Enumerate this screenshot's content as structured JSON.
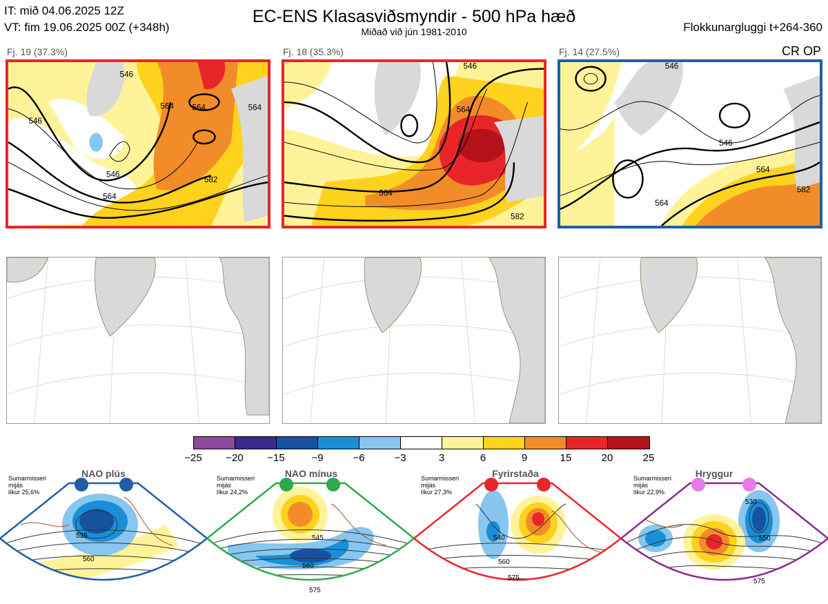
{
  "header": {
    "it_line": "IT: mið 04.06.2025 12Z",
    "vt_line": "VT: fim 19.06.2025 00Z  (+348h)",
    "title": "EC-ENS Klasasviðsmyndir - 500 hPa hæð",
    "subtitle": "Miðað við jún 1981-2010",
    "window": "Flokkunargluggi t+264-360",
    "regime_tag": "CR OP"
  },
  "clusters": [
    {
      "label": "Fj. 19 (37.3%)",
      "frame_color": "#e8262a",
      "contours": [
        "546",
        "564",
        "564",
        "564",
        "546",
        "546",
        "564",
        "582"
      ]
    },
    {
      "label": "Fj. 18 (35.3%)",
      "frame_color": "#e8262a",
      "contours": [
        "546",
        "564",
        "564",
        "582"
      ]
    },
    {
      "label": "Fj. 14 (27.5%)",
      "frame_color": "#1f5fa6",
      "contours": [
        "546",
        "546",
        "564",
        "564",
        "582"
      ]
    }
  ],
  "colorbar": {
    "colors": [
      "#8a4a9e",
      "#3b2a8c",
      "#1752a0",
      "#1a8fd8",
      "#87c6ef",
      "#ffffff",
      "#fff39a",
      "#ffd21e",
      "#f28c28",
      "#e8262a",
      "#b5121b"
    ],
    "ticks": [
      "−25",
      "−20",
      "−15",
      "−9",
      "−6",
      "−3",
      "3",
      "6",
      "9",
      "15",
      "20",
      "25"
    ]
  },
  "regimes": [
    {
      "name": "NAO plús",
      "note": "Sumarmisseri\nmijás\nlíkur 25,6%",
      "color": "#1f5fa6",
      "dot_color": "#1f5fa6",
      "contours": [
        "535",
        "560"
      ]
    },
    {
      "name": "NAO mínus",
      "note": "Sumarmisseri\nmijás\nlíkur 24,2%",
      "color": "#2eaa4a",
      "dot_color": "#2eaa4a",
      "contours": [
        "545",
        "560",
        "575"
      ]
    },
    {
      "name": "Fyrirstaða",
      "note": "Sumarmisseri\nmijás\nlíkur 27,3%",
      "color": "#e8262a",
      "dot_color": "#e8262a",
      "contours": [
        "540",
        "560",
        "575"
      ]
    },
    {
      "name": "Hryggur",
      "note": "Sumarmisseri\nmijás\nlíkur 22,9%",
      "color": "#8a2b8e",
      "dot_color": "#e879e8",
      "contours": [
        "530",
        "550",
        "575"
      ]
    }
  ]
}
